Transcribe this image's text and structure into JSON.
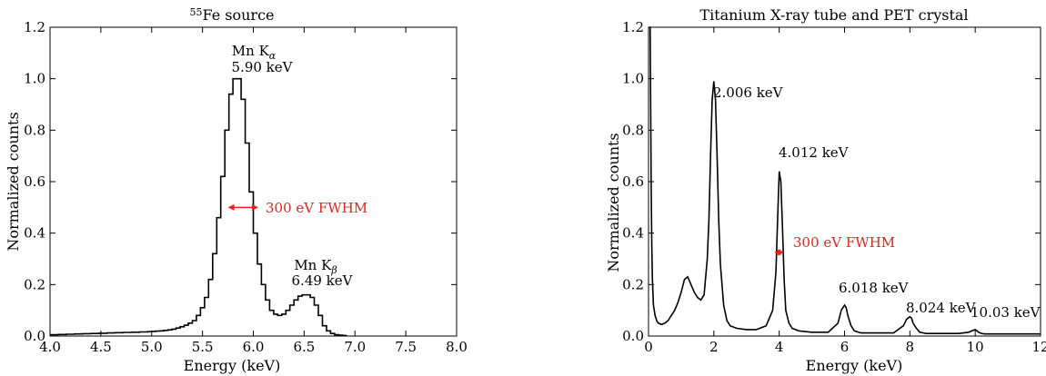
{
  "chart_data": [
    {
      "type": "line",
      "title_sup": "55",
      "title": "Fe source",
      "xlabel": "Energy (keV)",
      "ylabel": "Normalized counts",
      "xlim": [
        4.0,
        8.0
      ],
      "ylim": [
        0.0,
        1.2
      ],
      "xticks": [
        "4.0",
        "4.5",
        "5.0",
        "5.5",
        "6.0",
        "6.5",
        "7.0",
        "7.5",
        "8.0"
      ],
      "yticks": [
        "0.0",
        "0.2",
        "0.4",
        "0.6",
        "0.8",
        "1.0",
        "1.2"
      ],
      "step": true,
      "series": [
        {
          "x": [
            4.0,
            4.04,
            4.08,
            4.12,
            4.16,
            4.2,
            4.24,
            4.28,
            4.32,
            4.36,
            4.4,
            4.44,
            4.48,
            4.52,
            4.56,
            4.6,
            4.64,
            4.68,
            4.72,
            4.76,
            4.8,
            4.84,
            4.88,
            4.92,
            4.96,
            5.0,
            5.04,
            5.08,
            5.12,
            5.16,
            5.2,
            5.24,
            5.28,
            5.32,
            5.36,
            5.4,
            5.44,
            5.48,
            5.52,
            5.56,
            5.6,
            5.64,
            5.68,
            5.72,
            5.76,
            5.8,
            5.84,
            5.88,
            5.92,
            5.96,
            6.0,
            6.04,
            6.08,
            6.12,
            6.16,
            6.2,
            6.24,
            6.28,
            6.32,
            6.36,
            6.4,
            6.44,
            6.48,
            6.52,
            6.56,
            6.6,
            6.64,
            6.68,
            6.72,
            6.76,
            6.8,
            6.84,
            6.88
          ],
          "y": [
            0.005,
            0.005,
            0.006,
            0.006,
            0.007,
            0.007,
            0.008,
            0.008,
            0.009,
            0.009,
            0.01,
            0.01,
            0.011,
            0.011,
            0.012,
            0.012,
            0.013,
            0.013,
            0.014,
            0.014,
            0.015,
            0.015,
            0.016,
            0.016,
            0.017,
            0.018,
            0.019,
            0.02,
            0.022,
            0.024,
            0.027,
            0.031,
            0.036,
            0.042,
            0.05,
            0.06,
            0.08,
            0.11,
            0.15,
            0.22,
            0.32,
            0.46,
            0.62,
            0.8,
            0.94,
            1.0,
            1.0,
            0.92,
            0.75,
            0.56,
            0.4,
            0.28,
            0.2,
            0.14,
            0.1,
            0.085,
            0.08,
            0.085,
            0.1,
            0.12,
            0.14,
            0.155,
            0.16,
            0.16,
            0.15,
            0.12,
            0.08,
            0.04,
            0.02,
            0.01,
            0.005,
            0.003,
            0.002
          ]
        }
      ],
      "annotations": [
        {
          "line1": "Mn K",
          "sub1": "α",
          "line2": "5.90 keV",
          "x": 5.9,
          "y": 1.0
        },
        {
          "line1": "Mn K",
          "sub1": "β",
          "line2": "6.49 keV",
          "x": 6.49,
          "y": 0.16
        }
      ],
      "fwhm": {
        "label": "300 eV FWHM",
        "x1": 5.75,
        "x2": 6.05,
        "y": 0.5,
        "color": "#e8211d"
      }
    },
    {
      "type": "line",
      "title": "Titanium X-ray tube and PET crystal",
      "xlabel": "Energy (keV)",
      "ylabel": "Normalized counts",
      "xlim": [
        0,
        12
      ],
      "ylim": [
        0.0,
        1.2
      ],
      "xticks": [
        "0",
        "2",
        "4",
        "6",
        "8",
        "10",
        "12"
      ],
      "yticks": [
        "0.0",
        "0.2",
        "0.4",
        "0.6",
        "0.8",
        "1.0",
        "1.2"
      ],
      "step": false,
      "series": [
        {
          "x": [
            0.02,
            0.05,
            0.08,
            0.1,
            0.12,
            0.15,
            0.2,
            0.25,
            0.3,
            0.4,
            0.5,
            0.6,
            0.7,
            0.8,
            0.9,
            1.0,
            1.1,
            1.2,
            1.3,
            1.4,
            1.5,
            1.6,
            1.7,
            1.8,
            1.85,
            1.9,
            1.95,
            2.0,
            2.05,
            2.1,
            2.15,
            2.2,
            2.3,
            2.4,
            2.5,
            2.7,
            3.0,
            3.3,
            3.6,
            3.8,
            3.9,
            3.95,
            4.0,
            4.05,
            4.1,
            4.15,
            4.2,
            4.3,
            4.4,
            4.6,
            5.0,
            5.5,
            5.8,
            5.9,
            6.0,
            6.05,
            6.1,
            6.2,
            6.3,
            6.5,
            7.0,
            7.5,
            7.8,
            7.9,
            8.0,
            8.05,
            8.1,
            8.2,
            8.3,
            8.5,
            9.0,
            9.5,
            9.8,
            9.9,
            10.0,
            10.05,
            10.1,
            10.2,
            10.3,
            10.5,
            11.0,
            11.5,
            12.0
          ],
          "y": [
            1.2,
            1.2,
            0.6,
            0.35,
            0.22,
            0.12,
            0.08,
            0.06,
            0.05,
            0.045,
            0.05,
            0.06,
            0.08,
            0.1,
            0.13,
            0.17,
            0.22,
            0.23,
            0.2,
            0.17,
            0.15,
            0.14,
            0.16,
            0.3,
            0.45,
            0.7,
            0.92,
            0.99,
            0.92,
            0.7,
            0.45,
            0.28,
            0.12,
            0.06,
            0.04,
            0.03,
            0.025,
            0.025,
            0.04,
            0.1,
            0.25,
            0.45,
            0.64,
            0.6,
            0.42,
            0.22,
            0.1,
            0.05,
            0.03,
            0.02,
            0.015,
            0.015,
            0.05,
            0.1,
            0.12,
            0.11,
            0.08,
            0.04,
            0.02,
            0.012,
            0.012,
            0.012,
            0.04,
            0.065,
            0.075,
            0.07,
            0.05,
            0.03,
            0.015,
            0.01,
            0.01,
            0.01,
            0.015,
            0.02,
            0.025,
            0.02,
            0.015,
            0.01,
            0.008,
            0.008,
            0.008,
            0.008,
            0.008
          ]
        }
      ],
      "annotations": [
        {
          "line1": "2.006 keV",
          "x": 2.006,
          "y": 1.0
        },
        {
          "line1": "4.012 keV",
          "x": 4.012,
          "y": 0.65
        },
        {
          "line1": "6.018 keV",
          "x": 6.018,
          "y": 0.12
        },
        {
          "line1": "8.024 keV",
          "x": 8.024,
          "y": 0.075
        },
        {
          "line1": "10.03 keV",
          "x": 10.03,
          "y": 0.025
        }
      ],
      "fwhm": {
        "label": "300 eV FWHM",
        "x1": 3.85,
        "x2": 4.15,
        "y": 0.325,
        "color": "#e8211d"
      }
    }
  ]
}
